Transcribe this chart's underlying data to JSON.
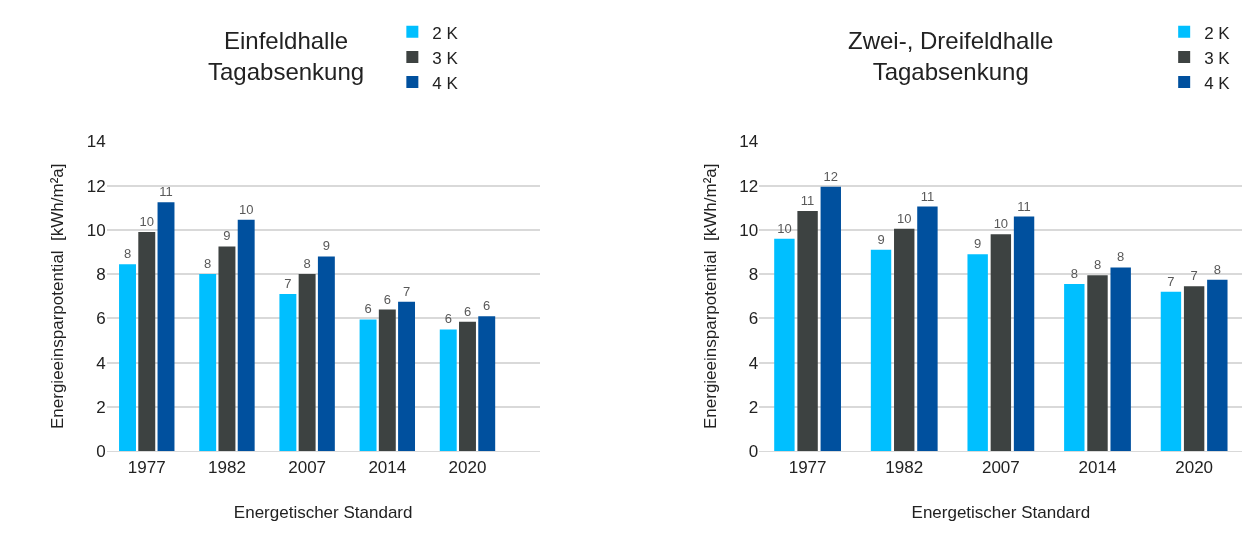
{
  "chart_data": [
    {
      "type": "bar",
      "title": "Einfeldhalle\nTagabsenkung",
      "xlabel": "Energetischer Standard",
      "ylabel": "Energieeinsparpotential  [kWh/m²a]",
      "categories": [
        "1977",
        "1982",
        "2007",
        "2014",
        "2020"
      ],
      "ylim": [
        0,
        14
      ],
      "yticks": [
        0,
        2,
        4,
        6,
        8,
        10,
        12,
        14
      ],
      "grid": "y",
      "legend": "top right",
      "series": [
        {
          "name": "2 K",
          "color": "#00bfff",
          "values": [
            8.45,
            8.0,
            7.1,
            5.95,
            5.5
          ],
          "value_labels": [
            "8",
            "8",
            "7",
            "6",
            "6"
          ]
        },
        {
          "name": "3 K",
          "color": "#3d4241",
          "values": [
            9.9,
            9.25,
            8.0,
            6.4,
            5.85
          ],
          "value_labels": [
            "10",
            "9",
            "8",
            "6",
            "6"
          ]
        },
        {
          "name": "4 K",
          "color": "#00509e",
          "values": [
            11.25,
            10.45,
            8.8,
            6.75,
            6.1
          ],
          "value_labels": [
            "11",
            "10",
            "9",
            "7",
            "6"
          ]
        }
      ]
    },
    {
      "type": "bar",
      "title": "Zwei-, Dreifeldhalle\nTagabsenkung",
      "xlabel": "Energetischer Standard",
      "ylabel": "Energieeinsparpotential  [kWh/m²a]",
      "categories": [
        "1977",
        "1982",
        "2007",
        "2014",
        "2020"
      ],
      "ylim": [
        0,
        14
      ],
      "yticks": [
        0,
        2,
        4,
        6,
        8,
        10,
        12,
        14
      ],
      "grid": "y",
      "legend": "top right",
      "series": [
        {
          "name": "2 K",
          "color": "#00bfff",
          "values": [
            9.6,
            9.1,
            8.9,
            7.55,
            7.2
          ],
          "value_labels": [
            "10",
            "9",
            "9",
            "8",
            "7"
          ]
        },
        {
          "name": "3 K",
          "color": "#3d4241",
          "values": [
            10.85,
            10.05,
            9.8,
            7.95,
            7.45
          ],
          "value_labels": [
            "11",
            "10",
            "10",
            "8",
            "7"
          ]
        },
        {
          "name": "4 K",
          "color": "#00509e",
          "values": [
            11.95,
            11.05,
            10.6,
            8.3,
            7.75
          ],
          "value_labels": [
            "12",
            "11",
            "11",
            "8",
            "8"
          ]
        }
      ]
    }
  ]
}
